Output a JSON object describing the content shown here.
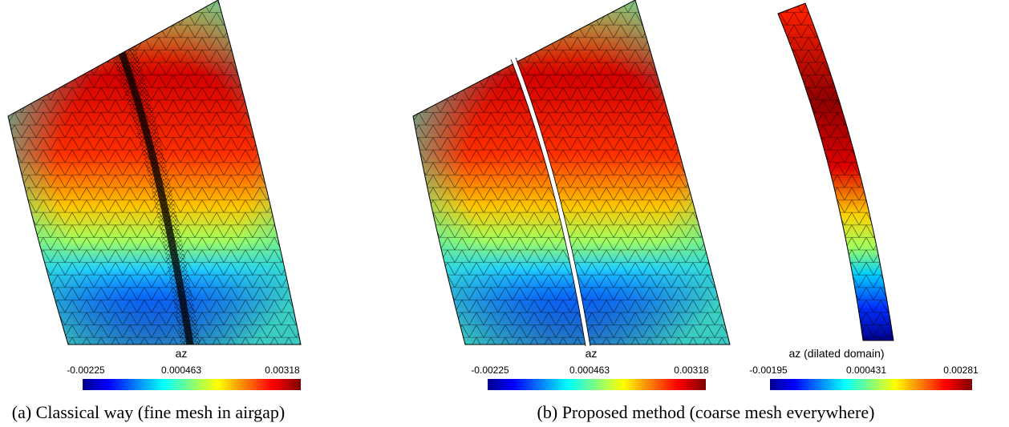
{
  "panels": [
    {
      "colorbar": {
        "label": "az",
        "ticks": [
          -0.00225,
          0.000463,
          0.00318
        ]
      }
    },
    {
      "colorbar": {
        "label": "az",
        "ticks": [
          -0.00225,
          0.000463,
          0.00318
        ]
      }
    },
    {
      "colorbar": {
        "label": "az (dilated domain)",
        "ticks": [
          -0.00195,
          0.000431,
          0.00281
        ]
      }
    }
  ],
  "captions": [
    "(a) Classical way (fine mesh in airgap)",
    "(b) Proposed method (coarse mesh everywhere)"
  ]
}
